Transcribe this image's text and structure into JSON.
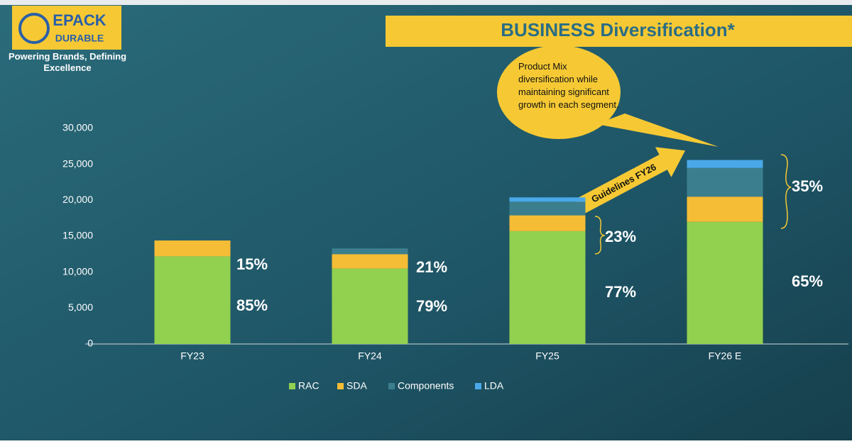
{
  "logo": {
    "line1": "EPACK",
    "line2": "DURABLE"
  },
  "tagline": "Powering Brands, Defining Excellence",
  "chart_data": {
    "type": "stacked_bar",
    "title": "BUSINESS Diversification*",
    "callout": "Product Mix diversification while maintaining significant growth in each segment.",
    "arrow_label": "Guidelines FY26",
    "categories": [
      "FY23",
      "FY24",
      "FY25",
      "FY26 E"
    ],
    "series": [
      {
        "name": "RAC",
        "color": "#92d050",
        "values": [
          12200,
          10500,
          15700,
          17000
        ]
      },
      {
        "name": "SDA",
        "color": "#f5bd35",
        "values": [
          2200,
          2000,
          2200,
          3500
        ]
      },
      {
        "name": "Components",
        "color": "#3b7f8e",
        "values": [
          0,
          800,
          1900,
          4000
        ]
      },
      {
        "name": "LDA",
        "color": "#4aa8e8",
        "values": [
          0,
          0,
          600,
          1100
        ]
      }
    ],
    "rac_share_labels": [
      "85%",
      "79%",
      "77%",
      "65%"
    ],
    "other_share_labels": [
      "15%",
      "21%",
      "23%",
      "35%"
    ],
    "ylim": [
      0,
      30000
    ],
    "yticks": [
      0,
      {
        "value": 5000,
        "label": "5,000"
      },
      {
        "value": 10000,
        "label": "10,000"
      },
      {
        "value": 15000,
        "label": "15,000"
      },
      {
        "value": 20000,
        "label": "20,000"
      },
      {
        "value": 25000,
        "label": "25,000"
      },
      {
        "value": 30000,
        "label": "30,000"
      }
    ],
    "legend": "bottom"
  }
}
